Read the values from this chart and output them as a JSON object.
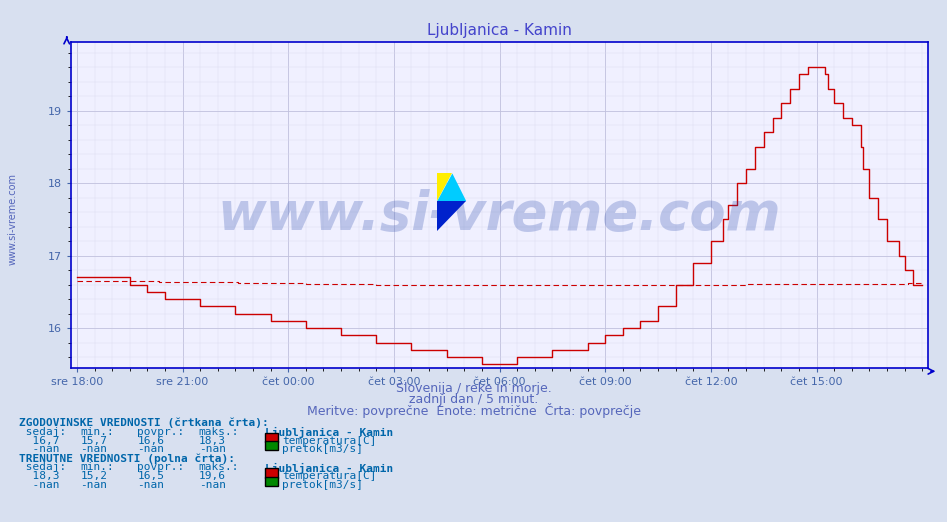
{
  "title": "Ljubljanica - Kamin",
  "title_color": "#4444cc",
  "title_fontsize": 11,
  "background_color": "#d8e0f0",
  "plot_background_color": "#f0f0ff",
  "grid_color_major": "#c0c0dd",
  "grid_color_minor": "#dcdcee",
  "x_tick_labels": [
    "sre 18:00",
    "sre 21:00",
    "čet 00:00",
    "čet 03:00",
    "čet 06:00",
    "čet 09:00",
    "čet 12:00",
    "čet 15:00"
  ],
  "x_tick_positions": [
    0,
    36,
    72,
    108,
    144,
    180,
    216,
    252
  ],
  "ylim_bottom": 15.45,
  "ylim_top": 19.95,
  "yticks": [
    16,
    17,
    18,
    19
  ],
  "xlabel_subtitle1": "Slovenija / reke in morje.",
  "xlabel_subtitle2": "zadnji dan / 5 minut.",
  "xlabel_subtitle3": "Meritve: povprečne  Enote: metrične  Črta: povprečje",
  "subtitle_color": "#5566bb",
  "subtitle_fontsize": 9,
  "watermark": "www.si-vreme.com",
  "watermark_color": "#2244aa",
  "watermark_alpha": 0.25,
  "watermark_fontsize": 38,
  "axis_color": "#0000cc",
  "tick_color": "#4466aa",
  "tick_fontsize": 8,
  "n_points": 289,
  "solid_color": "#cc0000",
  "dashed_color": "#cc0000",
  "solid_linewidth": 1.0,
  "dashed_linewidth": 0.8,
  "text_block_color": "#0066aa",
  "text_block_fontsize": 8,
  "sidebar_text": "www.si-vreme.com",
  "sidebar_color": "#5566bb",
  "sidebar_fontsize": 7,
  "temp_color": "#cc0000",
  "pretok_color": "#008800",
  "logo_yellow": "#ffee00",
  "logo_cyan": "#00ccff",
  "logo_blue": "#0022cc"
}
